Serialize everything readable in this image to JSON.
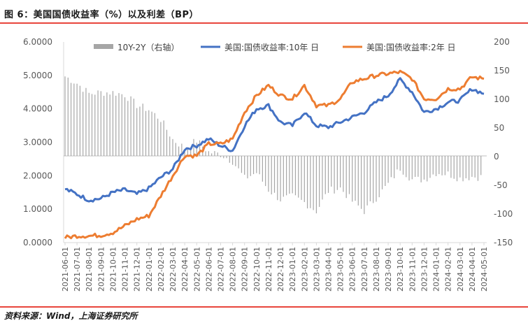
{
  "figure": {
    "title": "图 6：美国国债收益率（%）以及利差（BP）",
    "source": "资料来源：Wind，上海证券研究所"
  },
  "chart_data": {
    "type": "line",
    "left_axis": {
      "range": [
        0,
        6
      ],
      "ticks": [
        "0.0000",
        "1.0000",
        "2.0000",
        "3.0000",
        "4.0000",
        "5.0000",
        "6.0000"
      ]
    },
    "right_axis": {
      "range": [
        -150,
        200
      ],
      "ticks": [
        "-150",
        "-100",
        "-50",
        "0",
        "50",
        "100",
        "150",
        "200"
      ]
    },
    "x": [
      "2021-06-01",
      "2021-07-01",
      "2021-08-01",
      "2021-09-01",
      "2021-10-01",
      "2021-11-01",
      "2021-12-01",
      "2022-01-01",
      "2022-02-01",
      "2022-03-01",
      "2022-04-01",
      "2022-05-01",
      "2022-06-01",
      "2022-07-01",
      "2022-08-01",
      "2022-09-01",
      "2022-10-01",
      "2022-11-01",
      "2022-12-01",
      "2023-01-01",
      "2023-02-01",
      "2023-03-01",
      "2023-04-01",
      "2023-05-01",
      "2023-06-01",
      "2023-07-01",
      "2023-08-01",
      "2023-09-01",
      "2023-10-01",
      "2023-11-01",
      "2023-12-01",
      "2024-01-01",
      "2024-02-01",
      "2024-03-01",
      "2024-04-01",
      "2024-05-01"
    ],
    "legend_position": "top",
    "series": [
      {
        "name": "10Y-2Y（右轴）",
        "type": "bar",
        "axis": "right",
        "color": "#a6a6a6",
        "values": [
          140,
          128,
          110,
          112,
          112,
          108,
          90,
          82,
          65,
          30,
          15,
          28,
          8,
          4,
          -8,
          -38,
          -28,
          -58,
          -75,
          -70,
          -80,
          -95,
          -60,
          -55,
          -78,
          -95,
          -72,
          -48,
          -20,
          -40,
          -40,
          -28,
          -30,
          -38,
          -35,
          -36
        ]
      },
      {
        "name": "美国:国债收益率:10年 日",
        "type": "line",
        "axis": "left",
        "color": "#4472c4",
        "values": [
          1.6,
          1.45,
          1.27,
          1.32,
          1.5,
          1.58,
          1.45,
          1.62,
          1.95,
          2.2,
          2.8,
          2.9,
          3.1,
          2.9,
          2.75,
          3.5,
          4.0,
          4.1,
          3.6,
          3.5,
          3.9,
          3.5,
          3.45,
          3.6,
          3.75,
          3.9,
          4.2,
          4.4,
          4.88,
          4.5,
          3.9,
          4.0,
          4.2,
          4.25,
          4.6,
          4.45
        ]
      },
      {
        "name": "美国:国债收益率:2年 日",
        "type": "line",
        "axis": "left",
        "color": "#ed7d31",
        "values": [
          0.15,
          0.2,
          0.2,
          0.22,
          0.3,
          0.5,
          0.7,
          0.8,
          1.4,
          2.0,
          2.6,
          2.6,
          2.95,
          2.95,
          3.1,
          3.9,
          4.4,
          4.7,
          4.4,
          4.3,
          4.7,
          4.1,
          4.1,
          4.3,
          4.8,
          4.9,
          5.0,
          5.05,
          5.1,
          4.9,
          4.3,
          4.3,
          4.6,
          4.6,
          4.95,
          4.9
        ]
      }
    ]
  }
}
